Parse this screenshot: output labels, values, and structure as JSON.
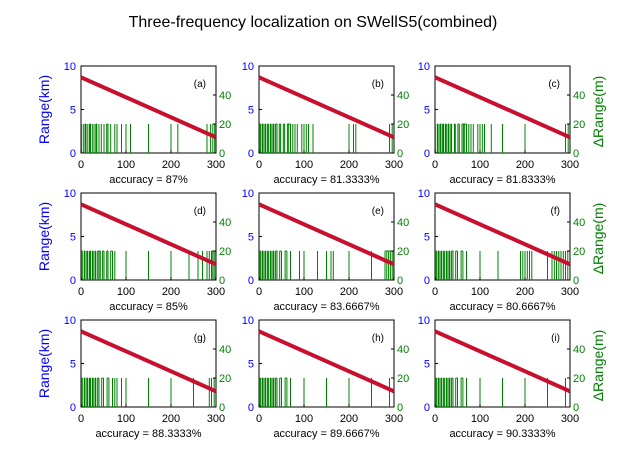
{
  "figure": {
    "title": "Three-frequency localization on SWellS5(combined)",
    "left_ylabel": "Range(km)",
    "right_ylabel": "ΔRange(m)",
    "colors": {
      "axis": "#000000",
      "left_axis": "#0000ff",
      "right_axis": "#008000",
      "track": "#c8102e",
      "error": "#008000"
    }
  },
  "chart_data": [
    {
      "type": "line",
      "panel": "(a)",
      "accuracy": "accuracy = 87%",
      "xlim": [
        0,
        300
      ],
      "ylim_left": [
        0,
        10
      ],
      "ylim_right": [
        0,
        60
      ],
      "xticks": [
        0,
        100,
        200,
        300
      ],
      "yticks_left": [
        0,
        5,
        10
      ],
      "yticks_right": [
        0,
        20,
        40
      ],
      "series": [
        {
          "axis": "left",
          "x": [
            0,
            300
          ],
          "y": [
            8.7,
            1.8
          ]
        },
        {
          "axis": "right",
          "x": [
            1,
            3,
            5,
            7,
            9,
            11,
            13,
            15,
            17,
            19,
            21,
            23,
            25,
            27,
            29,
            31,
            33,
            35,
            37,
            40,
            43,
            45,
            48,
            51,
            54,
            57,
            60,
            63,
            66,
            70,
            75,
            80,
            85,
            90,
            100,
            110,
            150,
            200,
            215,
            280,
            288,
            293,
            297
          ],
          "y": [
            20,
            0,
            20,
            0,
            20,
            20,
            0,
            20,
            0,
            20,
            20,
            0,
            20,
            0,
            20,
            0,
            20,
            20,
            0,
            20,
            0,
            20,
            0,
            20,
            0,
            20,
            20,
            0,
            20,
            0,
            20,
            20,
            0,
            20,
            20,
            20,
            20,
            20,
            20,
            20,
            20,
            20,
            20
          ]
        }
      ]
    },
    {
      "type": "line",
      "panel": "(b)",
      "accuracy": "accuracy = 81.3333%",
      "xlim": [
        0,
        300
      ],
      "ylim_left": [
        0,
        10
      ],
      "ylim_right": [
        0,
        60
      ],
      "xticks": [
        0,
        100,
        200,
        300
      ],
      "yticks_left": [
        0,
        5,
        10
      ],
      "yticks_right": [
        0,
        20,
        40
      ],
      "series": [
        {
          "axis": "left",
          "x": [
            0,
            300
          ],
          "y": [
            8.7,
            1.8
          ]
        },
        {
          "axis": "right",
          "x": [
            1,
            3,
            5,
            7,
            9,
            11,
            13,
            15,
            17,
            19,
            21,
            23,
            25,
            27,
            29,
            31,
            33,
            35,
            37,
            40,
            43,
            45,
            48,
            51,
            54,
            57,
            60,
            63,
            66,
            70,
            75,
            80,
            85,
            95,
            100,
            105,
            110,
            120,
            200,
            210,
            215,
            290,
            296
          ],
          "y": [
            20,
            20,
            0,
            20,
            20,
            0,
            20,
            20,
            0,
            20,
            20,
            0,
            20,
            20,
            0,
            20,
            20,
            0,
            20,
            20,
            0,
            20,
            20,
            0,
            20,
            20,
            0,
            20,
            20,
            20,
            20,
            20,
            20,
            20,
            20,
            20,
            20,
            20,
            20,
            20,
            20,
            20,
            20
          ]
        }
      ]
    },
    {
      "type": "line",
      "panel": "(c)",
      "accuracy": "accuracy = 81.8333%",
      "xlim": [
        0,
        300
      ],
      "ylim_left": [
        0,
        10
      ],
      "ylim_right": [
        0,
        60
      ],
      "xticks": [
        0,
        100,
        200,
        300
      ],
      "yticks_left": [
        0,
        5,
        10
      ],
      "yticks_right": [
        0,
        20,
        40
      ],
      "series": [
        {
          "axis": "left",
          "x": [
            0,
            300
          ],
          "y": [
            8.7,
            1.8
          ]
        },
        {
          "axis": "right",
          "x": [
            1,
            3,
            5,
            7,
            9,
            11,
            13,
            15,
            17,
            19,
            21,
            23,
            25,
            27,
            29,
            31,
            33,
            35,
            37,
            40,
            43,
            45,
            48,
            51,
            54,
            57,
            60,
            63,
            66,
            70,
            75,
            80,
            85,
            95,
            100,
            105,
            110,
            125,
            150,
            200,
            290,
            296
          ],
          "y": [
            20,
            0,
            20,
            20,
            0,
            20,
            20,
            0,
            20,
            20,
            0,
            20,
            20,
            0,
            20,
            20,
            0,
            20,
            20,
            0,
            20,
            20,
            0,
            20,
            20,
            0,
            20,
            20,
            20,
            20,
            20,
            20,
            20,
            20,
            20,
            20,
            20,
            20,
            20,
            20,
            20,
            20
          ]
        }
      ]
    },
    {
      "type": "line",
      "panel": "(d)",
      "accuracy": "accuracy = 85%",
      "xlim": [
        0,
        300
      ],
      "ylim_left": [
        0,
        10
      ],
      "ylim_right": [
        0,
        60
      ],
      "xticks": [
        0,
        100,
        200,
        300
      ],
      "yticks_left": [
        0,
        5,
        10
      ],
      "yticks_right": [
        0,
        20,
        40
      ],
      "series": [
        {
          "axis": "left",
          "x": [
            0,
            300
          ],
          "y": [
            8.7,
            1.8
          ]
        },
        {
          "axis": "right",
          "x": [
            1,
            3,
            5,
            7,
            9,
            11,
            13,
            15,
            17,
            19,
            21,
            23,
            25,
            27,
            29,
            31,
            33,
            35,
            37,
            40,
            43,
            45,
            48,
            51,
            54,
            57,
            60,
            63,
            66,
            70,
            75,
            100,
            150,
            200,
            240,
            260,
            270,
            280,
            285,
            290,
            293,
            296,
            299
          ],
          "y": [
            20,
            20,
            0,
            20,
            20,
            0,
            20,
            20,
            0,
            20,
            20,
            0,
            20,
            20,
            0,
            20,
            20,
            0,
            20,
            20,
            20,
            0,
            20,
            20,
            0,
            20,
            20,
            0,
            20,
            20,
            20,
            20,
            20,
            20,
            20,
            20,
            20,
            20,
            20,
            20,
            20,
            20,
            20
          ]
        }
      ]
    },
    {
      "type": "line",
      "panel": "(e)",
      "accuracy": "accuracy = 83.6667%",
      "xlim": [
        0,
        300
      ],
      "ylim_left": [
        0,
        10
      ],
      "ylim_right": [
        0,
        60
      ],
      "xticks": [
        0,
        100,
        200,
        300
      ],
      "yticks_left": [
        0,
        5,
        10
      ],
      "yticks_right": [
        0,
        20,
        40
      ],
      "series": [
        {
          "axis": "left",
          "x": [
            0,
            300
          ],
          "y": [
            8.7,
            1.8
          ]
        },
        {
          "axis": "right",
          "x": [
            1,
            3,
            5,
            7,
            9,
            11,
            13,
            15,
            17,
            19,
            21,
            23,
            25,
            27,
            29,
            31,
            33,
            35,
            37,
            40,
            43,
            46,
            50,
            54,
            58,
            62,
            66,
            70,
            90,
            100,
            130,
            150,
            160,
            165,
            200,
            250,
            280,
            284,
            288,
            292,
            296,
            299
          ],
          "y": [
            20,
            20,
            0,
            20,
            20,
            0,
            20,
            20,
            0,
            20,
            20,
            0,
            20,
            20,
            0,
            20,
            20,
            0,
            20,
            20,
            0,
            20,
            20,
            0,
            20,
            20,
            0,
            20,
            20,
            20,
            20,
            20,
            20,
            20,
            20,
            20,
            20,
            20,
            20,
            20,
            20,
            20
          ]
        }
      ]
    },
    {
      "type": "line",
      "panel": "(f)",
      "accuracy": "accuracy = 80.6667%",
      "xlim": [
        0,
        300
      ],
      "ylim_left": [
        0,
        10
      ],
      "ylim_right": [
        0,
        60
      ],
      "xticks": [
        0,
        100,
        200,
        300
      ],
      "yticks_left": [
        0,
        5,
        10
      ],
      "yticks_right": [
        0,
        20,
        40
      ],
      "series": [
        {
          "axis": "left",
          "x": [
            0,
            300
          ],
          "y": [
            8.7,
            1.8
          ]
        },
        {
          "axis": "right",
          "x": [
            1,
            3,
            5,
            7,
            9,
            11,
            13,
            15,
            17,
            19,
            21,
            23,
            25,
            27,
            29,
            31,
            33,
            35,
            37,
            40,
            43,
            46,
            50,
            54,
            58,
            62,
            66,
            70,
            100,
            140,
            190,
            195,
            200,
            205,
            210,
            215,
            250,
            260,
            265,
            270,
            275,
            280,
            285,
            290,
            295
          ],
          "y": [
            20,
            20,
            0,
            20,
            20,
            0,
            20,
            20,
            0,
            20,
            20,
            0,
            20,
            20,
            0,
            20,
            20,
            0,
            20,
            20,
            0,
            20,
            20,
            0,
            20,
            20,
            0,
            20,
            20,
            20,
            20,
            20,
            20,
            20,
            20,
            20,
            20,
            20,
            20,
            20,
            20,
            20,
            20,
            20,
            20
          ]
        }
      ]
    },
    {
      "type": "line",
      "panel": "(g)",
      "accuracy": "accuracy = 88.3333%",
      "xlim": [
        0,
        300
      ],
      "ylim_left": [
        0,
        10
      ],
      "ylim_right": [
        0,
        60
      ],
      "xticks": [
        0,
        100,
        200,
        300
      ],
      "yticks_left": [
        0,
        5,
        10
      ],
      "yticks_right": [
        0,
        20,
        40
      ],
      "series": [
        {
          "axis": "left",
          "x": [
            0,
            300
          ],
          "y": [
            8.7,
            1.8
          ]
        },
        {
          "axis": "right",
          "x": [
            1,
            3,
            5,
            7,
            9,
            11,
            13,
            15,
            17,
            19,
            21,
            23,
            25,
            27,
            29,
            31,
            33,
            35,
            37,
            40,
            43,
            46,
            50,
            54,
            58,
            62,
            66,
            70,
            75,
            80,
            90,
            100,
            150,
            200,
            250,
            285,
            290,
            296
          ],
          "y": [
            20,
            20,
            0,
            20,
            20,
            0,
            20,
            20,
            0,
            20,
            20,
            0,
            20,
            20,
            0,
            20,
            20,
            0,
            20,
            20,
            0,
            20,
            20,
            0,
            20,
            20,
            0,
            20,
            20,
            20,
            20,
            20,
            20,
            20,
            20,
            20,
            20,
            20
          ]
        }
      ]
    },
    {
      "type": "line",
      "panel": "(h)",
      "accuracy": "accuracy = 89.6667%",
      "xlim": [
        0,
        300
      ],
      "ylim_left": [
        0,
        10
      ],
      "ylim_right": [
        0,
        60
      ],
      "xticks": [
        0,
        100,
        200,
        300
      ],
      "yticks_left": [
        0,
        5,
        10
      ],
      "yticks_right": [
        0,
        20,
        40
      ],
      "series": [
        {
          "axis": "left",
          "x": [
            0,
            300
          ],
          "y": [
            8.7,
            1.8
          ]
        },
        {
          "axis": "right",
          "x": [
            1,
            3,
            5,
            7,
            9,
            11,
            13,
            15,
            17,
            19,
            21,
            23,
            25,
            27,
            29,
            31,
            33,
            35,
            37,
            40,
            43,
            46,
            50,
            54,
            58,
            62,
            66,
            70,
            100,
            150,
            200,
            250,
            290
          ],
          "y": [
            20,
            20,
            0,
            20,
            20,
            0,
            20,
            20,
            0,
            20,
            20,
            0,
            20,
            20,
            0,
            20,
            20,
            0,
            20,
            20,
            0,
            20,
            20,
            0,
            20,
            20,
            0,
            20,
            20,
            20,
            20,
            20,
            20
          ]
        }
      ]
    },
    {
      "type": "line",
      "panel": "(i)",
      "accuracy": "accuracy = 90.3333%",
      "xlim": [
        0,
        300
      ],
      "ylim_left": [
        0,
        10
      ],
      "ylim_right": [
        0,
        60
      ],
      "xticks": [
        0,
        100,
        200,
        300
      ],
      "yticks_left": [
        0,
        5,
        10
      ],
      "yticks_right": [
        0,
        20,
        40
      ],
      "series": [
        {
          "axis": "left",
          "x": [
            0,
            300
          ],
          "y": [
            8.7,
            1.8
          ]
        },
        {
          "axis": "right",
          "x": [
            1,
            3,
            5,
            7,
            9,
            11,
            13,
            15,
            17,
            19,
            21,
            23,
            25,
            27,
            29,
            31,
            33,
            35,
            37,
            40,
            43,
            46,
            50,
            54,
            58,
            62,
            66,
            70,
            100,
            150,
            200,
            250,
            290
          ],
          "y": [
            20,
            20,
            0,
            20,
            20,
            0,
            20,
            20,
            0,
            20,
            20,
            0,
            20,
            20,
            0,
            20,
            20,
            0,
            20,
            20,
            0,
            20,
            20,
            0,
            20,
            20,
            0,
            20,
            20,
            20,
            20,
            20,
            20
          ]
        }
      ]
    }
  ]
}
